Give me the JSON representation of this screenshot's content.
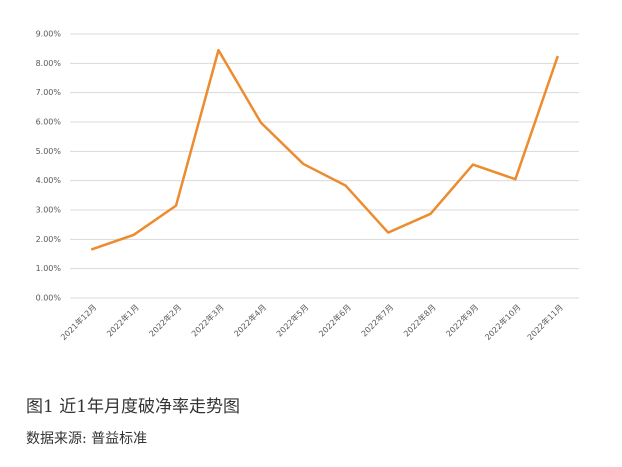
{
  "chart_data": {
    "type": "line",
    "categories": [
      "2021年12月",
      "2022年1月",
      "2022年2月",
      "2022年3月",
      "2022年4月",
      "2022年5月",
      "2022年6月",
      "2022年7月",
      "2022年8月",
      "2022年9月",
      "2022年10月",
      "2022年11月"
    ],
    "series": [
      {
        "color": "#ed8b2f",
        "values": [
          1.65,
          2.15,
          3.15,
          8.45,
          5.98,
          4.57,
          3.83,
          2.23,
          2.87,
          4.55,
          4.05,
          8.25
        ]
      }
    ],
    "ylim": [
      0,
      9
    ],
    "yticks": [
      {
        "value": 0,
        "label": "0.00%"
      },
      {
        "value": 1,
        "label": "1.00%"
      },
      {
        "value": 2,
        "label": "2.00%"
      },
      {
        "value": 3,
        "label": "3.00%"
      },
      {
        "value": 4,
        "label": "4.00%"
      },
      {
        "value": 5,
        "label": "5.00%"
      },
      {
        "value": 6,
        "label": "6.00%"
      },
      {
        "value": 7,
        "label": "7.00%"
      },
      {
        "value": 8,
        "label": "8.00%"
      },
      {
        "value": 9,
        "label": "9.00%"
      }
    ],
    "grid": true
  },
  "caption": "图1  近1年月度破净率走势图",
  "source": "数据来源: 普益标准"
}
